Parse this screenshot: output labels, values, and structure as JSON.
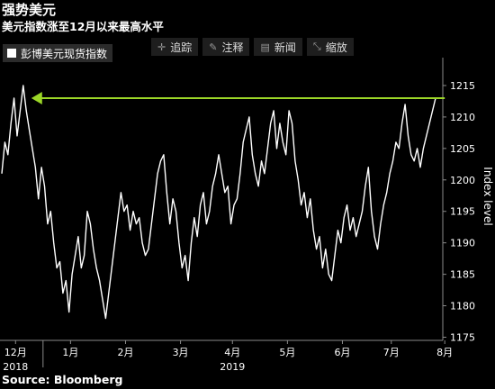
{
  "header": {
    "title": "强势美元",
    "subtitle": "美元指数涨至12月以来最高水平"
  },
  "legend": {
    "label": "彭博美元现货指数",
    "swatch_color": "#ffffff"
  },
  "toolbar": {
    "items": [
      {
        "icon": "crosshair-icon",
        "glyph": "✛",
        "label": "追踪"
      },
      {
        "icon": "annotate-icon",
        "glyph": "✎",
        "label": "注释"
      },
      {
        "icon": "news-icon",
        "glyph": "▤",
        "label": "新闻"
      },
      {
        "icon": "zoom-icon",
        "glyph": "⤡",
        "label": "缩放"
      }
    ]
  },
  "source": "Source: Bloomberg",
  "chart_data": {
    "type": "line",
    "series": [
      {
        "name": "彭博美元现货指数",
        "color": "#ffffff",
        "values": [
          1201,
          1206,
          1204,
          1209,
          1213,
          1207,
          1211,
          1215,
          1211,
          1208,
          1205,
          1202,
          1197,
          1202,
          1199,
          1193,
          1195,
          1190,
          1186,
          1187,
          1182,
          1184,
          1179,
          1185,
          1188,
          1191,
          1186,
          1188,
          1195,
          1193,
          1189,
          1186,
          1184,
          1181,
          1178,
          1182,
          1186,
          1190,
          1194,
          1198,
          1195,
          1196,
          1192,
          1195,
          1193,
          1194,
          1190,
          1188,
          1189,
          1193,
          1197,
          1201,
          1203,
          1204,
          1198,
          1193,
          1197,
          1195,
          1190,
          1186,
          1188,
          1184,
          1190,
          1194,
          1191,
          1196,
          1198,
          1193,
          1195,
          1199,
          1201,
          1204,
          1201,
          1198,
          1199,
          1193,
          1196,
          1197,
          1201,
          1206,
          1208,
          1210,
          1204,
          1201,
          1199,
          1203,
          1201,
          1205,
          1209,
          1211,
          1205,
          1209,
          1206,
          1204,
          1211,
          1209,
          1203,
          1200,
          1196,
          1198,
          1194,
          1197,
          1192,
          1189,
          1191,
          1186,
          1189,
          1185,
          1184,
          1188,
          1192,
          1190,
          1194,
          1196,
          1192,
          1194,
          1191,
          1193,
          1195,
          1199,
          1202,
          1195,
          1191,
          1189,
          1193,
          1196,
          1198,
          1201,
          1203,
          1206,
          1205,
          1209,
          1212,
          1207,
          1204,
          1203,
          1205,
          1202,
          1205,
          1207,
          1209,
          1211,
          1213
        ]
      }
    ],
    "x_tick_labels": [
      "12月",
      "1月",
      "2月",
      "3月",
      "4月",
      "5月",
      "6月",
      "7月",
      "8月"
    ],
    "x_tick_positions": [
      4.5,
      22.5,
      40.5,
      58.5,
      75.5,
      93.5,
      111.5,
      127.5,
      145
    ],
    "year_labels": [
      {
        "label": "2018",
        "at": 4.5
      },
      {
        "label": "2019",
        "at": 75.5
      }
    ],
    "ylabel": "Index level",
    "ylim": [
      1174.5,
      1218
    ],
    "yticks": [
      1175,
      1180,
      1185,
      1190,
      1195,
      1200,
      1205,
      1210,
      1215
    ],
    "annotation": {
      "type": "arrow",
      "level": 1213,
      "from_index": 145,
      "to_index": 2,
      "color": "#9bd627"
    },
    "grid": false
  }
}
